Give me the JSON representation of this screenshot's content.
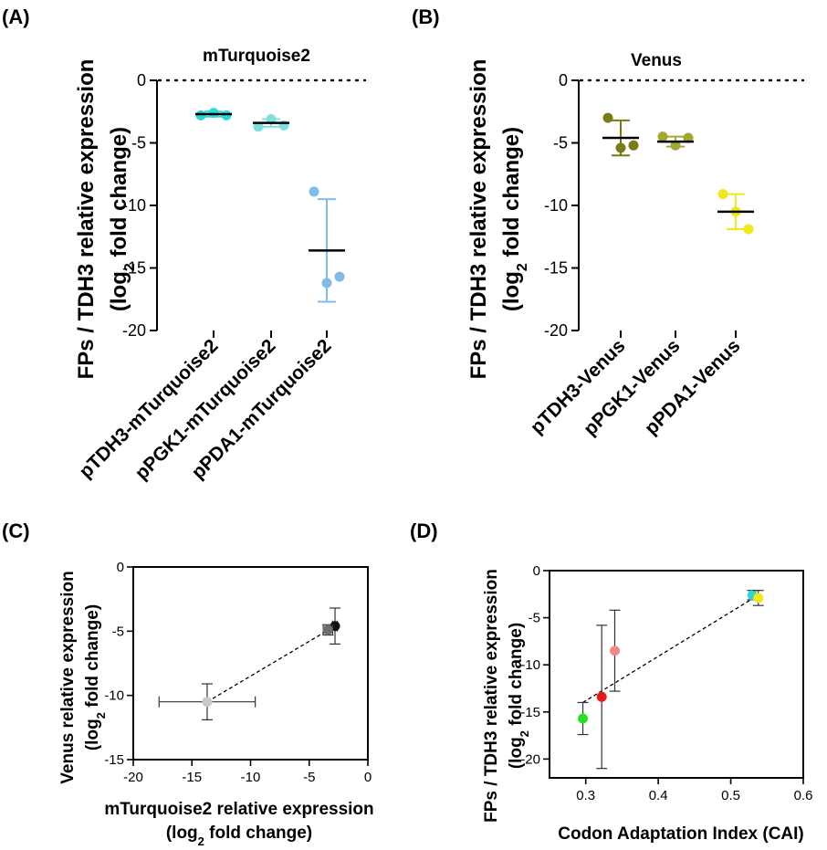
{
  "chart_data": [
    {
      "id": "A",
      "panel_label": "(A)",
      "type": "scatter",
      "title": "mTurquoise2",
      "ylabel_line1": "FPs / TDH3 relative expression",
      "ylabel_line2_pre": "(log",
      "ylabel_line2_sub": "2",
      "ylabel_line2_post": " fold change)",
      "ylim": [
        -20,
        0
      ],
      "yticks": [
        0,
        -5,
        -10,
        -15,
        -20
      ],
      "reference_line": 0,
      "categories": [
        "pTDH3-mTurquoise2",
        "pPGK1-mTurquoise2",
        "pPDA1-mTurquoise2"
      ],
      "groups": [
        {
          "color": "#2ad8d8",
          "mean": -2.7,
          "sd_low": -2.9,
          "sd_high": -2.5,
          "points": [
            -2.8,
            -2.6,
            -2.8
          ]
        },
        {
          "color": "#7fe0e0",
          "mean": -3.4,
          "sd_low": -3.7,
          "sd_high": -3.1,
          "points": [
            -3.7,
            -3.1,
            -3.6
          ]
        },
        {
          "color": "#7fbcea",
          "mean": -13.6,
          "sd_low": -17.7,
          "sd_high": -9.5,
          "points": [
            -8.9,
            -16.2,
            -15.7
          ]
        }
      ]
    },
    {
      "id": "B",
      "panel_label": "(B)",
      "type": "scatter",
      "title": "Venus",
      "ylabel_line1": "FPs / TDH3 relative expression",
      "ylabel_line2_pre": "(log",
      "ylabel_line2_sub": "2",
      "ylabel_line2_post": " fold change)",
      "ylim": [
        -20,
        0
      ],
      "yticks": [
        0,
        -5,
        -10,
        -15,
        -20
      ],
      "reference_line": 0,
      "categories": [
        "pTDH3-Venus",
        "pPGK1-Venus",
        "pPDA1-Venus"
      ],
      "groups": [
        {
          "color": "#7a7a16",
          "mean": -4.6,
          "sd_low": -6.0,
          "sd_high": -3.2,
          "points": [
            -3.0,
            -5.4,
            -5.2
          ]
        },
        {
          "color": "#a6a632",
          "mean": -4.9,
          "sd_low": -5.3,
          "sd_high": -4.5,
          "points": [
            -4.5,
            -5.2,
            -4.6
          ]
        },
        {
          "color": "#f0e81a",
          "mean": -10.5,
          "sd_low": -11.9,
          "sd_high": -9.1,
          "points": [
            -9.1,
            -10.5,
            -11.9
          ]
        }
      ]
    },
    {
      "id": "C",
      "panel_label": "(C)",
      "type": "scatter",
      "xlabel_line1": "mTurquoise2 relative expression",
      "xlabel_line2_pre": "(log",
      "xlabel_line2_sub": "2",
      "xlabel_line2_post": " fold change)",
      "ylabel_line1": "Venus relative expression",
      "ylabel_line2_pre": "(log",
      "ylabel_line2_sub": "2",
      "ylabel_line2_post": " fold change)",
      "xlim": [
        -20,
        0
      ],
      "ylim": [
        -15,
        0
      ],
      "xticks": [
        -20,
        -15,
        -10,
        -5,
        0
      ],
      "yticks": [
        0,
        -5,
        -10,
        -15
      ],
      "points": [
        {
          "x": -2.8,
          "y": -4.6,
          "xerr": 0.2,
          "yerr": 1.4,
          "color": "#111111"
        },
        {
          "x": -3.4,
          "y": -4.9,
          "xerr": 0.4,
          "yerr": 0.4,
          "color": "#6e6e6e"
        },
        {
          "x": -13.7,
          "y": -10.5,
          "xerr": 4.1,
          "yerr": 1.4,
          "color": "#c8c8c8"
        }
      ],
      "trend_line": [
        [
          -13.7,
          -10.5
        ],
        [
          -2.8,
          -4.6
        ]
      ]
    },
    {
      "id": "D",
      "panel_label": "(D)",
      "type": "scatter",
      "xlabel": "Codon Adaptation  Index (CAI)",
      "ylabel_line1": "FPs / TDH3 relative expression",
      "ylabel_line2_pre": "(log",
      "ylabel_line2_sub": "2",
      "ylabel_line2_post": " fold change)",
      "xlim": [
        0.25,
        0.6
      ],
      "ylim": [
        -22,
        0
      ],
      "xticks": [
        0.3,
        0.4,
        0.5,
        0.6
      ],
      "yticks": [
        0,
        -5,
        -10,
        -15,
        -20
      ],
      "points": [
        {
          "x": 0.296,
          "y": -15.7,
          "yerr": 1.7,
          "color": "#27e027"
        },
        {
          "x": 0.322,
          "y": -13.4,
          "yerr": 7.6,
          "color": "#e41a1a"
        },
        {
          "x": 0.34,
          "y": -8.5,
          "yerr": 4.3,
          "color": "#f08a8a"
        },
        {
          "x": 0.53,
          "y": -2.6,
          "yerr": 0.5,
          "color": "#2ad8d8"
        },
        {
          "x": 0.538,
          "y": -2.9,
          "yerr": 0.8,
          "color": "#f0e81a"
        }
      ],
      "trend_line": [
        [
          0.296,
          -14.0
        ],
        [
          0.538,
          -2.6
        ]
      ]
    }
  ]
}
